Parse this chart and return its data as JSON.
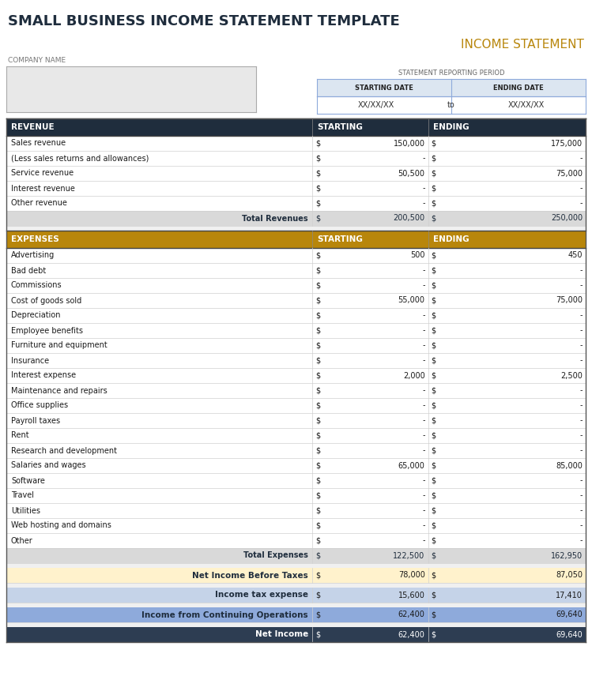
{
  "title": "SMALL BUSINESS INCOME STATEMENT TEMPLATE",
  "subtitle": "INCOME STATEMENT",
  "company_label": "COMPANY NAME",
  "reporting_period_label": "STATEMENT REPORTING PERIOD",
  "starting_date_label": "STARTING DATE",
  "ending_date_label": "ENDING DATE",
  "starting_date_value": "XX/XX/XX",
  "ending_date_value": "XX/XX/XX",
  "to_label": "to",
  "revenue_header": [
    "REVENUE",
    "STARTING",
    "ENDING"
  ],
  "revenue_rows": [
    [
      "Sales revenue",
      "$",
      "150,000",
      "$",
      "175,000"
    ],
    [
      "(Less sales returns and allowances)",
      "$",
      "-",
      "$",
      "-"
    ],
    [
      "Service revenue",
      "$",
      "50,500",
      "$",
      "75,000"
    ],
    [
      "Interest revenue",
      "$",
      "-",
      "$",
      "-"
    ],
    [
      "Other revenue",
      "$",
      "-",
      "$",
      "-"
    ]
  ],
  "total_revenues": [
    "Total Revenues",
    "$",
    "200,500",
    "$",
    "250,000"
  ],
  "expenses_header": [
    "EXPENSES",
    "STARTING",
    "ENDING"
  ],
  "expenses_rows": [
    [
      "Advertising",
      "$",
      "500",
      "$",
      "450"
    ],
    [
      "Bad debt",
      "$",
      "-",
      "$",
      "-"
    ],
    [
      "Commissions",
      "$",
      "-",
      "$",
      "-"
    ],
    [
      "Cost of goods sold",
      "$",
      "55,000",
      "$",
      "75,000"
    ],
    [
      "Depreciation",
      "$",
      "-",
      "$",
      "-"
    ],
    [
      "Employee benefits",
      "$",
      "-",
      "$",
      "-"
    ],
    [
      "Furniture and equipment",
      "$",
      "-",
      "$",
      "-"
    ],
    [
      "Insurance",
      "$",
      "-",
      "$",
      "-"
    ],
    [
      "Interest expense",
      "$",
      "2,000",
      "$",
      "2,500"
    ],
    [
      "Maintenance and repairs",
      "$",
      "-",
      "$",
      "-"
    ],
    [
      "Office supplies",
      "$",
      "-",
      "$",
      "-"
    ],
    [
      "Payroll taxes",
      "$",
      "-",
      "$",
      "-"
    ],
    [
      "Rent",
      "$",
      "-",
      "$",
      "-"
    ],
    [
      "Research and development",
      "$",
      "-",
      "$",
      "-"
    ],
    [
      "Salaries and wages",
      "$",
      "65,000",
      "$",
      "85,000"
    ],
    [
      "Software",
      "$",
      "-",
      "$",
      "-"
    ],
    [
      "Travel",
      "$",
      "-",
      "$",
      "-"
    ],
    [
      "Utilities",
      "$",
      "-",
      "$",
      "-"
    ],
    [
      "Web hosting and domains",
      "$",
      "-",
      "$",
      "-"
    ],
    [
      "Other",
      "$",
      "-",
      "$",
      "-"
    ]
  ],
  "total_expenses": [
    "Total Expenses",
    "$",
    "122,500",
    "$",
    "162,950"
  ],
  "net_income_before_taxes": [
    "Net Income Before Taxes",
    "$",
    "78,000",
    "$",
    "87,050"
  ],
  "income_tax_expense": [
    "Income tax expense",
    "$",
    "15,600",
    "$",
    "17,410"
  ],
  "income_from_ops": [
    "Income from Continuing Operations",
    "$",
    "62,400",
    "$",
    "69,640"
  ],
  "net_income": [
    "Net Income",
    "$",
    "62,400",
    "$",
    "69,640"
  ],
  "colors": {
    "title_text": "#1f2d3d",
    "subtitle_text": "#b8860b",
    "background": "#ffffff",
    "revenue_header_bg": "#1f2d3d",
    "revenue_header_text": "#ffffff",
    "expenses_header_bg": "#b8860b",
    "expenses_header_text": "#ffffff",
    "total_row_bg": "#d9d9d9",
    "total_row_text": "#1f2d3d",
    "net_income_before_bg": "#fff2cc",
    "net_income_before_text": "#1f2d3d",
    "income_tax_bg": "#c5d3e8",
    "income_tax_text": "#1f2d3d",
    "income_ops_bg": "#8eaadb",
    "income_ops_text": "#1f2d3d",
    "net_income_bg": "#2d3d52",
    "net_income_text": "#ffffff",
    "row_line": "#c8c8c8",
    "company_box_bg": "#e8e8e8",
    "date_header_bg": "#dce6f1",
    "date_value_bg": "#ffffff",
    "date_border": "#8eaadb",
    "gap_bg": "#f0f0f0"
  }
}
